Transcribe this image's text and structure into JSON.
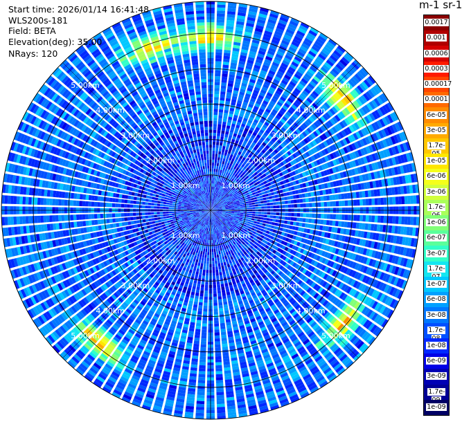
{
  "header": {
    "start_time": "Start time: 2026/01/14 16:41:48",
    "instrument": "WLS200s-181",
    "field": "Field: BETA",
    "elevation": "Elevation(deg): 35.00",
    "nrays": "NRays: 120"
  },
  "colorbar": {
    "title": "m-1 sr-1",
    "labels": [
      "0.0017",
      "0.001",
      "0.0006",
      "0.0003",
      "0.00017",
      "0.0001",
      "6e-05",
      "3e-05",
      "1.7e-05",
      "1e-05",
      "6e-06",
      "3e-06",
      "1.7e-06",
      "1e-06",
      "6e-07",
      "3e-07",
      "1.7e-07",
      "1e-07",
      "6e-08",
      "3e-08",
      "1.7e-08",
      "1e-08",
      "6e-09",
      "3e-09",
      "1.7e-09",
      "1e-09"
    ],
    "colors": [
      "#8b0000",
      "#b00000",
      "#d40000",
      "#ff1a00",
      "#ff4500",
      "#ff6a00",
      "#ff8c00",
      "#ffaa00",
      "#ffc800",
      "#ffe600",
      "#f5ff1a",
      "#d2ff3c",
      "#aaff5a",
      "#82ff78",
      "#5aff9b",
      "#32ffc8",
      "#14e6f0",
      "#00c8ff",
      "#00a0ff",
      "#0078ff",
      "#0050ff",
      "#0028ff",
      "#0000e6",
      "#0000b4",
      "#000096",
      "#000064"
    ]
  },
  "chart_data": {
    "type": "heatmap",
    "projection": "polar PPI",
    "nrays": 120,
    "range_rings_km": [
      1,
      2,
      3,
      4,
      5
    ],
    "max_range_km": 5.9,
    "ring_label_suffix": "km",
    "range_labels": [
      "1.00km",
      "2.00km",
      "3.00km",
      "4.00km",
      "5.00km"
    ],
    "cross_lines": true,
    "colorscale": "jet (log)",
    "vmin": 1e-09,
    "vmax": 0.0017,
    "background_level": "1e-08 to 1e-07",
    "high_return_azimuths_deg": [
      0,
      50,
      130,
      220,
      340
    ]
  }
}
